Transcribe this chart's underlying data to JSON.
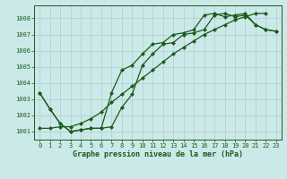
{
  "title": "Graphe pression niveau de la mer (hPa)",
  "background_color": "#cce9e9",
  "grid_color": "#b0cccc",
  "line_color": "#1a5c1a",
  "xlim": [
    -0.5,
    23.5
  ],
  "ylim": [
    1000.5,
    1008.8
  ],
  "yticks": [
    1001,
    1002,
    1003,
    1004,
    1005,
    1006,
    1007,
    1008
  ],
  "xticks": [
    0,
    1,
    2,
    3,
    4,
    5,
    6,
    7,
    8,
    9,
    10,
    11,
    12,
    13,
    14,
    15,
    16,
    17,
    18,
    19,
    20,
    21,
    22,
    23
  ],
  "series1_x": [
    0,
    1,
    2,
    3,
    4,
    5,
    6,
    7,
    8,
    9,
    10,
    11,
    12,
    13,
    14,
    15,
    16,
    17,
    18,
    19,
    20,
    21,
    22
  ],
  "series1_y": [
    1001.2,
    1001.2,
    1001.3,
    1001.3,
    1001.5,
    1001.8,
    1002.2,
    1002.8,
    1003.3,
    1003.8,
    1004.3,
    1004.8,
    1005.3,
    1005.8,
    1006.2,
    1006.6,
    1007.0,
    1007.3,
    1007.6,
    1007.9,
    1008.1,
    1008.3,
    1008.3
  ],
  "series2_x": [
    0,
    1,
    2,
    3,
    4,
    5,
    6,
    7,
    8,
    9,
    10,
    11,
    12,
    13,
    14,
    15,
    16,
    17,
    18,
    19,
    20,
    21,
    22,
    23
  ],
  "series2_y": [
    1003.4,
    1002.4,
    1001.5,
    1001.0,
    1001.1,
    1001.2,
    1001.2,
    1001.3,
    1002.5,
    1003.3,
    1005.1,
    1005.8,
    1006.4,
    1006.5,
    1007.0,
    1007.1,
    1007.3,
    1008.2,
    1008.3,
    1008.1,
    1008.2,
    1007.6,
    1007.3,
    1007.2
  ],
  "series3_x": [
    0,
    1,
    2,
    3,
    4,
    5,
    6,
    7,
    8,
    9,
    10,
    11,
    12,
    13,
    14,
    15,
    16,
    17,
    18,
    19,
    20,
    21,
    22,
    23
  ],
  "series3_y": [
    1003.4,
    1002.4,
    1001.5,
    1001.0,
    1001.1,
    1001.2,
    1001.2,
    1003.4,
    1004.8,
    1005.1,
    1005.8,
    1006.4,
    1006.5,
    1007.0,
    1007.1,
    1007.3,
    1008.2,
    1008.3,
    1008.1,
    1008.2,
    1008.3,
    1007.6,
    1007.3,
    1007.2
  ]
}
